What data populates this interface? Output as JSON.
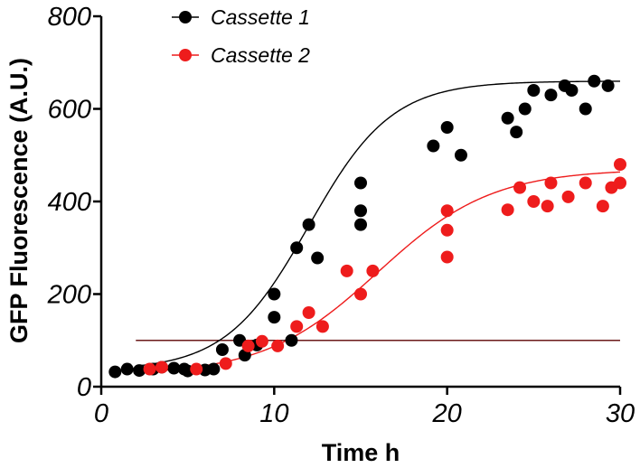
{
  "chart_data": {
    "type": "scatter",
    "title": "",
    "xlabel": "Time h",
    "ylabel": "GFP Fluorescence (A.U.)",
    "xlim": [
      0,
      30
    ],
    "ylim": [
      0,
      800
    ],
    "xticks": [
      0,
      10,
      20,
      30
    ],
    "yticks": [
      0,
      200,
      400,
      600,
      800
    ],
    "xtick_labels": [
      "0",
      "10",
      "20",
      "30"
    ],
    "ytick_labels": [
      "0",
      "200",
      "400",
      "600",
      "800"
    ],
    "grid": false,
    "legend_position": "top-center",
    "threshold": {
      "y": 100,
      "x_range": [
        2,
        30
      ],
      "color": "#6b1a1a"
    },
    "series": [
      {
        "name": "Cassette 1",
        "color": "#000000",
        "points": [
          [
            0.8,
            32
          ],
          [
            1.5,
            38
          ],
          [
            2.2,
            35
          ],
          [
            3.0,
            38
          ],
          [
            3.5,
            42
          ],
          [
            4.2,
            40
          ],
          [
            4.8,
            38
          ],
          [
            5.0,
            34
          ],
          [
            6.0,
            36
          ],
          [
            6.5,
            38
          ],
          [
            7.0,
            80
          ],
          [
            8.0,
            100
          ],
          [
            8.3,
            68
          ],
          [
            9.0,
            90
          ],
          [
            10.0,
            150
          ],
          [
            10.0,
            200
          ],
          [
            11.0,
            100
          ],
          [
            11.3,
            300
          ],
          [
            12.0,
            350
          ],
          [
            12.5,
            278
          ],
          [
            15.0,
            350
          ],
          [
            15.0,
            380
          ],
          [
            15.0,
            440
          ],
          [
            19.2,
            520
          ],
          [
            20.0,
            560
          ],
          [
            20.8,
            500
          ],
          [
            23.5,
            580
          ],
          [
            24.0,
            550
          ],
          [
            24.5,
            600
          ],
          [
            25.0,
            640
          ],
          [
            26.0,
            630
          ],
          [
            26.8,
            650
          ],
          [
            27.2,
            640
          ],
          [
            28.0,
            600
          ],
          [
            28.5,
            660
          ],
          [
            29.3,
            650
          ]
        ],
        "fit": {
          "min": 35,
          "max": 660,
          "mid": 12.0,
          "width": 2.4
        }
      },
      {
        "name": "Cassette 2",
        "color": "#ee1c1c",
        "points": [
          [
            2.8,
            38
          ],
          [
            3.5,
            42
          ],
          [
            5.5,
            38
          ],
          [
            7.2,
            50
          ],
          [
            8.5,
            88
          ],
          [
            9.3,
            98
          ],
          [
            10.2,
            88
          ],
          [
            11.3,
            130
          ],
          [
            12.0,
            160
          ],
          [
            12.8,
            130
          ],
          [
            14.2,
            250
          ],
          [
            15.0,
            200
          ],
          [
            15.7,
            250
          ],
          [
            20.0,
            280
          ],
          [
            20.0,
            338
          ],
          [
            20.0,
            380
          ],
          [
            23.5,
            382
          ],
          [
            24.2,
            430
          ],
          [
            25.0,
            400
          ],
          [
            25.8,
            390
          ],
          [
            26.0,
            440
          ],
          [
            27.0,
            410
          ],
          [
            28.0,
            440
          ],
          [
            29.0,
            390
          ],
          [
            29.5,
            430
          ],
          [
            30.0,
            440
          ],
          [
            30.0,
            480
          ]
        ],
        "fit": {
          "min": 25,
          "max": 470,
          "mid": 16.0,
          "width": 3.3
        }
      }
    ]
  }
}
